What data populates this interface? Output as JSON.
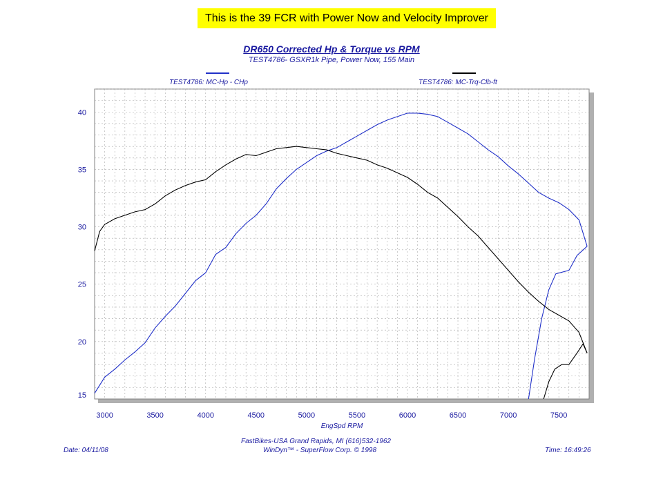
{
  "banner": "This is the 39 FCR with Power Now and Velocity Improver",
  "header": {
    "title": "DR650 Corrected Hp & Torque vs RPM",
    "subtitle": "TEST4786- GSXR1k Pipe, Power Now, 155 Main"
  },
  "legend": {
    "left_label": "TEST4786: MC-Hp - CHp",
    "right_label": "TEST4786: MC-Trq-Clb-ft",
    "left_color": "#1f2fc8",
    "right_color": "#000000"
  },
  "footer": {
    "date": "Date: 04/11/08",
    "time": "Time: 16:49:26",
    "credit_line1": "FastBikes-USA Grand Rapids, MI (616)532-1962",
    "credit_line2": "WinDyn™ - SuperFlow Corp. © 1998"
  },
  "chart_data": {
    "type": "line",
    "title": "DR650 Corrected Hp & Torque vs RPM",
    "subtitle": "TEST4786- GSXR1k Pipe, Power Now, 155 Main",
    "xlabel": "EngSpd  RPM",
    "ylabel": "",
    "xlim": [
      2900,
      7800
    ],
    "ylim": [
      15,
      42
    ],
    "x_ticks": [
      3000,
      3500,
      4000,
      4500,
      5000,
      5500,
      6000,
      6500,
      7000,
      7500
    ],
    "y_ticks": [
      15,
      20,
      25,
      30,
      35,
      40
    ],
    "grid": true,
    "legend_placement": "top",
    "series": [
      {
        "name": "TEST4786: MC-Hp - CHp",
        "color": "#1f2fc8",
        "points": [
          [
            2900,
            15.5
          ],
          [
            3000,
            16.9
          ],
          [
            3100,
            17.6
          ],
          [
            3200,
            18.4
          ],
          [
            3300,
            19.1
          ],
          [
            3400,
            19.9
          ],
          [
            3500,
            21.2
          ],
          [
            3600,
            22.2
          ],
          [
            3700,
            23.1
          ],
          [
            3800,
            24.2
          ],
          [
            3900,
            25.3
          ],
          [
            4000,
            26.0
          ],
          [
            4100,
            27.6
          ],
          [
            4200,
            28.2
          ],
          [
            4300,
            29.4
          ],
          [
            4400,
            30.3
          ],
          [
            4500,
            31.0
          ],
          [
            4600,
            32.0
          ],
          [
            4700,
            33.3
          ],
          [
            4800,
            34.2
          ],
          [
            4900,
            35.0
          ],
          [
            5000,
            35.6
          ],
          [
            5100,
            36.2
          ],
          [
            5200,
            36.6
          ],
          [
            5300,
            36.9
          ],
          [
            5400,
            37.4
          ],
          [
            5500,
            37.9
          ],
          [
            5600,
            38.4
          ],
          [
            5700,
            38.9
          ],
          [
            5800,
            39.3
          ],
          [
            5900,
            39.6
          ],
          [
            6000,
            39.9
          ],
          [
            6100,
            39.9
          ],
          [
            6200,
            39.8
          ],
          [
            6300,
            39.6
          ],
          [
            6400,
            39.1
          ],
          [
            6500,
            38.6
          ],
          [
            6600,
            38.1
          ],
          [
            6700,
            37.4
          ],
          [
            6800,
            36.7
          ],
          [
            6900,
            36.1
          ],
          [
            7000,
            35.3
          ],
          [
            7100,
            34.6
          ],
          [
            7200,
            33.8
          ],
          [
            7300,
            33.0
          ],
          [
            7400,
            32.5
          ],
          [
            7500,
            32.1
          ],
          [
            7600,
            31.5
          ],
          [
            7700,
            30.6
          ],
          [
            7780,
            28.3
          ]
        ],
        "rundown": [
          [
            7200,
            15.0
          ],
          [
            7260,
            18.5
          ],
          [
            7330,
            22.0
          ],
          [
            7400,
            24.5
          ],
          [
            7470,
            25.9
          ],
          [
            7600,
            26.2
          ],
          [
            7680,
            27.5
          ],
          [
            7780,
            28.3
          ]
        ]
      },
      {
        "name": "TEST4786: MC-Trq-Clb-ft",
        "color": "#000000",
        "points": [
          [
            2900,
            27.9
          ],
          [
            2950,
            29.6
          ],
          [
            3000,
            30.2
          ],
          [
            3100,
            30.7
          ],
          [
            3200,
            31.0
          ],
          [
            3300,
            31.3
          ],
          [
            3400,
            31.5
          ],
          [
            3500,
            32.0
          ],
          [
            3600,
            32.7
          ],
          [
            3700,
            33.2
          ],
          [
            3800,
            33.6
          ],
          [
            3900,
            33.9
          ],
          [
            4000,
            34.1
          ],
          [
            4100,
            34.8
          ],
          [
            4200,
            35.4
          ],
          [
            4300,
            35.9
          ],
          [
            4400,
            36.3
          ],
          [
            4500,
            36.2
          ],
          [
            4600,
            36.5
          ],
          [
            4700,
            36.8
          ],
          [
            4800,
            36.9
          ],
          [
            4900,
            37.0
          ],
          [
            5000,
            36.9
          ],
          [
            5100,
            36.8
          ],
          [
            5200,
            36.7
          ],
          [
            5300,
            36.4
          ],
          [
            5400,
            36.2
          ],
          [
            5500,
            36.0
          ],
          [
            5600,
            35.8
          ],
          [
            5700,
            35.4
          ],
          [
            5800,
            35.1
          ],
          [
            5900,
            34.7
          ],
          [
            6000,
            34.3
          ],
          [
            6100,
            33.7
          ],
          [
            6200,
            33.0
          ],
          [
            6300,
            32.5
          ],
          [
            6400,
            31.7
          ],
          [
            6500,
            30.9
          ],
          [
            6600,
            30.0
          ],
          [
            6700,
            29.2
          ],
          [
            6800,
            28.2
          ],
          [
            6900,
            27.2
          ],
          [
            7000,
            26.2
          ],
          [
            7100,
            25.2
          ],
          [
            7200,
            24.3
          ],
          [
            7300,
            23.5
          ],
          [
            7400,
            22.8
          ],
          [
            7500,
            22.3
          ],
          [
            7600,
            21.8
          ],
          [
            7700,
            20.8
          ],
          [
            7780,
            19.0
          ]
        ],
        "rundown": [
          [
            7350,
            15.0
          ],
          [
            7400,
            16.5
          ],
          [
            7460,
            17.6
          ],
          [
            7530,
            18.0
          ],
          [
            7600,
            18.0
          ],
          [
            7680,
            19.0
          ],
          [
            7740,
            19.8
          ],
          [
            7780,
            19.0
          ]
        ]
      }
    ]
  }
}
